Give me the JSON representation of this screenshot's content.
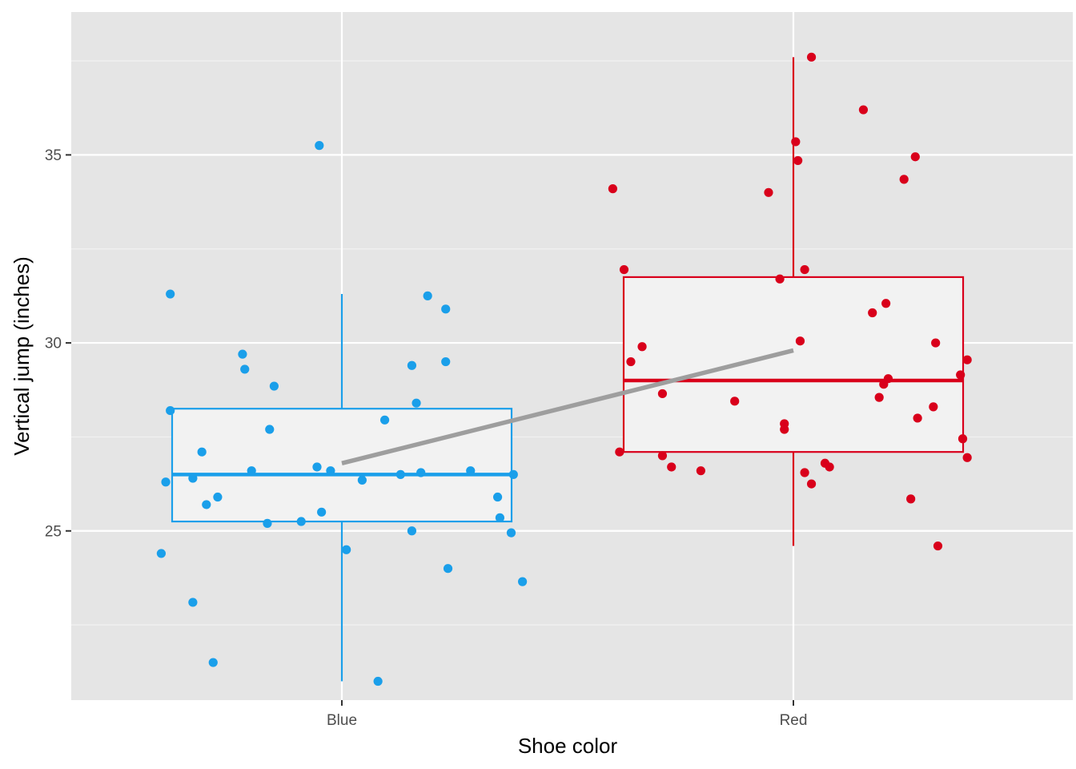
{
  "chart_data": {
    "type": "boxplot",
    "xlabel": "Shoe color",
    "ylabel": "Vertical jump (inches)",
    "categories": [
      "Blue",
      "Red"
    ],
    "ylim": [
      20.5,
      38.8
    ],
    "yticks": [
      25,
      30,
      35
    ],
    "grid": true,
    "legend": "none",
    "colors": {
      "Blue": "#1a9fea",
      "Red": "#d9001b",
      "mean_line": "#9e9e9e",
      "panel": "#e5e5e5",
      "box_fill": "#f2f2f2"
    },
    "boxes": [
      {
        "name": "Blue",
        "whisker_low": 21.0,
        "q1": 25.25,
        "median": 26.5,
        "q3": 28.25,
        "whisker_high": 31.3,
        "mean": 26.8
      },
      {
        "name": "Red",
        "whisker_low": 24.6,
        "q1": 27.1,
        "median": 29.0,
        "q3": 31.75,
        "whisker_high": 37.6,
        "mean": 29.8
      }
    ],
    "mean_line": {
      "from": "Blue",
      "to": "Red",
      "values": [
        26.8,
        29.8
      ]
    },
    "points": {
      "Blue": [
        {
          "x": -0.4,
          "y": 24.4
        },
        {
          "x": -0.39,
          "y": 26.3
        },
        {
          "x": -0.38,
          "y": 31.3
        },
        {
          "x": -0.38,
          "y": 28.2
        },
        {
          "x": -0.33,
          "y": 23.1
        },
        {
          "x": -0.33,
          "y": 26.4
        },
        {
          "x": -0.31,
          "y": 27.1
        },
        {
          "x": -0.3,
          "y": 25.7
        },
        {
          "x": -0.285,
          "y": 21.5
        },
        {
          "x": -0.275,
          "y": 25.9
        },
        {
          "x": -0.22,
          "y": 29.7
        },
        {
          "x": -0.215,
          "y": 29.3
        },
        {
          "x": -0.2,
          "y": 26.6
        },
        {
          "x": -0.165,
          "y": 25.2
        },
        {
          "x": -0.16,
          "y": 27.7
        },
        {
          "x": -0.15,
          "y": 28.85
        },
        {
          "x": -0.09,
          "y": 25.25
        },
        {
          "x": -0.055,
          "y": 26.7
        },
        {
          "x": -0.05,
          "y": 35.25
        },
        {
          "x": -0.045,
          "y": 25.5
        },
        {
          "x": -0.025,
          "y": 26.6
        },
        {
          "x": 0.01,
          "y": 24.5
        },
        {
          "x": 0.045,
          "y": 26.35
        },
        {
          "x": 0.08,
          "y": 21.0
        },
        {
          "x": 0.095,
          "y": 27.95
        },
        {
          "x": 0.13,
          "y": 26.5
        },
        {
          "x": 0.155,
          "y": 25.0
        },
        {
          "x": 0.155,
          "y": 29.4
        },
        {
          "x": 0.165,
          "y": 28.4
        },
        {
          "x": 0.175,
          "y": 26.55
        },
        {
          "x": 0.19,
          "y": 31.25
        },
        {
          "x": 0.23,
          "y": 29.5
        },
        {
          "x": 0.23,
          "y": 30.9
        },
        {
          "x": 0.235,
          "y": 24.0
        },
        {
          "x": 0.285,
          "y": 26.6
        },
        {
          "x": 0.345,
          "y": 25.9
        },
        {
          "x": 0.35,
          "y": 25.35
        },
        {
          "x": 0.375,
          "y": 24.95
        },
        {
          "x": 0.38,
          "y": 26.5
        },
        {
          "x": 0.4,
          "y": 23.65
        }
      ],
      "Red": [
        {
          "x": -0.4,
          "y": 34.1
        },
        {
          "x": -0.385,
          "y": 27.1
        },
        {
          "x": -0.375,
          "y": 31.95
        },
        {
          "x": -0.36,
          "y": 29.5
        },
        {
          "x": -0.335,
          "y": 29.9
        },
        {
          "x": -0.29,
          "y": 27.0
        },
        {
          "x": -0.29,
          "y": 28.65
        },
        {
          "x": -0.27,
          "y": 26.7
        },
        {
          "x": -0.205,
          "y": 26.6
        },
        {
          "x": -0.13,
          "y": 28.45
        },
        {
          "x": -0.055,
          "y": 34.0
        },
        {
          "x": -0.03,
          "y": 31.7
        },
        {
          "x": -0.02,
          "y": 27.85
        },
        {
          "x": -0.02,
          "y": 27.7
        },
        {
          "x": 0.005,
          "y": 35.35
        },
        {
          "x": 0.01,
          "y": 34.85
        },
        {
          "x": 0.015,
          "y": 30.05
        },
        {
          "x": 0.025,
          "y": 31.95
        },
        {
          "x": 0.025,
          "y": 26.55
        },
        {
          "x": 0.04,
          "y": 37.6
        },
        {
          "x": 0.04,
          "y": 26.25
        },
        {
          "x": 0.07,
          "y": 26.8
        },
        {
          "x": 0.08,
          "y": 26.7
        },
        {
          "x": 0.155,
          "y": 36.2
        },
        {
          "x": 0.175,
          "y": 30.8
        },
        {
          "x": 0.19,
          "y": 28.55
        },
        {
          "x": 0.2,
          "y": 28.9
        },
        {
          "x": 0.205,
          "y": 31.05
        },
        {
          "x": 0.21,
          "y": 29.05
        },
        {
          "x": 0.245,
          "y": 34.35
        },
        {
          "x": 0.26,
          "y": 25.85
        },
        {
          "x": 0.27,
          "y": 34.95
        },
        {
          "x": 0.275,
          "y": 28.0
        },
        {
          "x": 0.31,
          "y": 28.3
        },
        {
          "x": 0.315,
          "y": 30.0
        },
        {
          "x": 0.32,
          "y": 24.6
        },
        {
          "x": 0.37,
          "y": 29.15
        },
        {
          "x": 0.375,
          "y": 27.45
        },
        {
          "x": 0.385,
          "y": 26.95
        },
        {
          "x": 0.385,
          "y": 29.55
        }
      ]
    }
  }
}
